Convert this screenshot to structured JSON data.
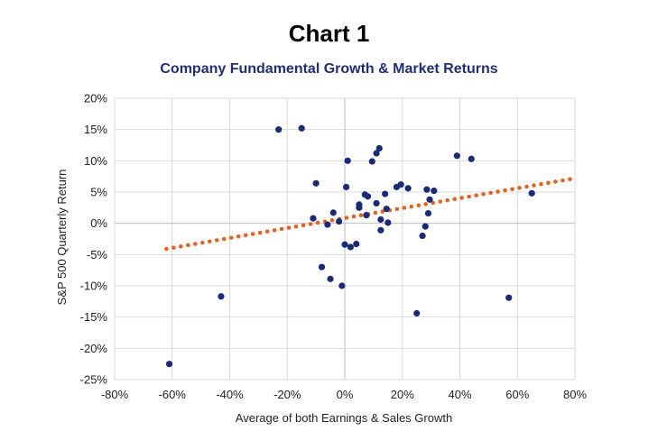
{
  "header": {
    "title": "Chart 1",
    "subtitle": "Company Fundamental Growth & Market Returns"
  },
  "colors": {
    "points": "#1a2a7a",
    "trendline": "#e8601c",
    "grid": "#d9d9d9",
    "zero_axis": "#bfbfbf"
  },
  "chart_data": {
    "type": "scatter",
    "title": "Company Fundamental Growth & Market Returns",
    "xlabel": "Average of both Earnings & Sales Growth",
    "ylabel": "S&P 500 Quarterly Return",
    "xlim": [
      -80,
      80
    ],
    "ylim": [
      -25,
      20
    ],
    "x_ticks": [
      "-80%",
      "-60%",
      "-40%",
      "-20%",
      "0%",
      "20%",
      "40%",
      "60%",
      "80%"
    ],
    "y_ticks": [
      "20%",
      "15%",
      "10%",
      "5%",
      "0%",
      "-5%",
      "-10%",
      "-15%",
      "-20%",
      "-25%"
    ],
    "x_tick_values": [
      -80,
      -60,
      -40,
      -20,
      0,
      20,
      40,
      60,
      80
    ],
    "y_tick_values": [
      20,
      15,
      10,
      5,
      0,
      -5,
      -10,
      -15,
      -20,
      -25
    ],
    "grid": true,
    "series": [
      {
        "points": [
          [
            -61,
            -22.5
          ],
          [
            -43,
            -11.7
          ],
          [
            -23,
            15.0
          ],
          [
            -15,
            15.2
          ],
          [
            -11,
            0.8
          ],
          [
            -10,
            6.4
          ],
          [
            -8,
            -7.0
          ],
          [
            -6,
            -0.2
          ],
          [
            -5,
            -8.9
          ],
          [
            -4,
            1.7
          ],
          [
            -2,
            0.3
          ],
          [
            -1,
            -10.0
          ],
          [
            0,
            -3.4
          ],
          [
            1,
            10.0
          ],
          [
            0.5,
            5.8
          ],
          [
            2,
            -3.8
          ],
          [
            4,
            -3.3
          ],
          [
            5,
            2.5
          ],
          [
            5,
            3.0
          ],
          [
            7,
            4.6
          ],
          [
            7.5,
            1.3
          ],
          [
            8,
            4.3
          ],
          [
            9.5,
            9.9
          ],
          [
            11,
            3.2
          ],
          [
            11,
            11.2
          ],
          [
            12,
            12.0
          ],
          [
            12.5,
            0.6
          ],
          [
            12.5,
            -1.1
          ],
          [
            14,
            4.7
          ],
          [
            14.5,
            2.3
          ],
          [
            15,
            0.1
          ],
          [
            18,
            5.8
          ],
          [
            19.5,
            6.2
          ],
          [
            22,
            5.6
          ],
          [
            25,
            -14.4
          ],
          [
            27,
            -2.0
          ],
          [
            28,
            -0.5
          ],
          [
            28.5,
            5.4
          ],
          [
            29,
            1.6
          ],
          [
            29.5,
            3.8
          ],
          [
            31,
            5.2
          ],
          [
            39,
            10.8
          ],
          [
            44,
            10.3
          ],
          [
            57,
            -11.9
          ],
          [
            65,
            4.8
          ]
        ]
      }
    ],
    "trendline": {
      "style": "dotted",
      "x": [
        -62,
        80
      ],
      "y": [
        -4.1,
        7.2
      ]
    }
  }
}
